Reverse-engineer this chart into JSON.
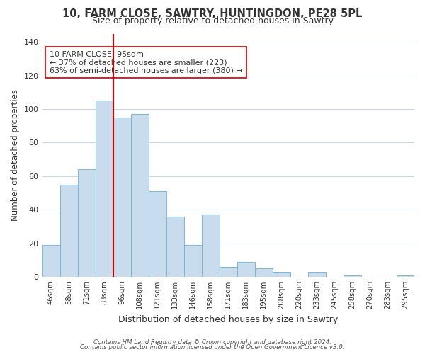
{
  "title": "10, FARM CLOSE, SAWTRY, HUNTINGDON, PE28 5PL",
  "subtitle": "Size of property relative to detached houses in Sawtry",
  "xlabel": "Distribution of detached houses by size in Sawtry",
  "ylabel": "Number of detached properties",
  "bar_labels": [
    "46sqm",
    "58sqm",
    "71sqm",
    "83sqm",
    "96sqm",
    "108sqm",
    "121sqm",
    "133sqm",
    "146sqm",
    "158sqm",
    "171sqm",
    "183sqm",
    "195sqm",
    "208sqm",
    "220sqm",
    "233sqm",
    "245sqm",
    "258sqm",
    "270sqm",
    "283sqm",
    "295sqm"
  ],
  "bar_values": [
    19,
    55,
    64,
    105,
    95,
    97,
    51,
    36,
    19,
    37,
    6,
    9,
    5,
    3,
    0,
    3,
    0,
    1,
    0,
    0,
    1
  ],
  "bar_color": "#c8dcee",
  "bar_edge_color": "#7ab8d4",
  "vline_color": "#cc0000",
  "vline_index": 4,
  "annotation_text": "10 FARM CLOSE: 95sqm\n← 37% of detached houses are smaller (223)\n63% of semi-detached houses are larger (380) →",
  "annotation_box_color": "#ffffff",
  "annotation_box_edge": "#cc0000",
  "ylim": [
    0,
    145
  ],
  "yticks": [
    0,
    20,
    40,
    60,
    80,
    100,
    120,
    140
  ],
  "footer1": "Contains HM Land Registry data © Crown copyright and database right 2024.",
  "footer2": "Contains public sector information licensed under the Open Government Licence v3.0.",
  "background_color": "#ffffff",
  "grid_color": "#c8d8e8"
}
